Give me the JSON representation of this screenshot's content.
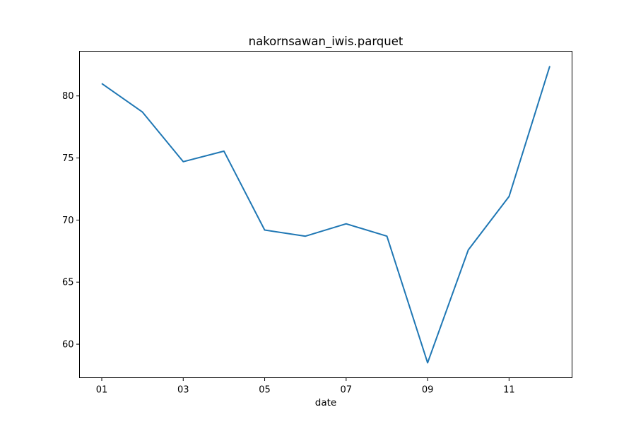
{
  "chart_data": {
    "type": "line",
    "title": "nakornsawan_iwis.parquet",
    "xlabel": "date",
    "ylabel": "",
    "x": [
      "01",
      "02",
      "03",
      "04",
      "05",
      "06",
      "07",
      "08",
      "09",
      "10",
      "11",
      "12"
    ],
    "x_tick_labels": [
      "01",
      "03",
      "05",
      "07",
      "09",
      "11"
    ],
    "series": [
      {
        "values": [
          81.0,
          78.7,
          74.7,
          75.55,
          69.2,
          68.7,
          69.7,
          68.7,
          58.5,
          67.6,
          71.9,
          82.4
        ]
      }
    ],
    "y_ticks": [
      60,
      65,
      70,
      75,
      80
    ],
    "ylim": [
      57.3,
      83.6
    ],
    "grid": false,
    "legend": "none",
    "line_color": "#1f77b4"
  }
}
